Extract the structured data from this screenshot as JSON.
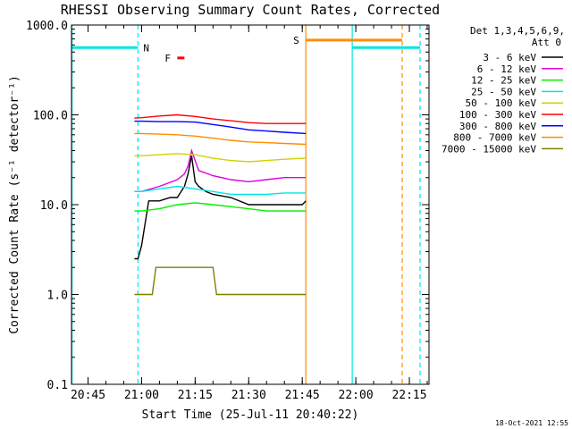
{
  "chart_data": {
    "type": "line",
    "title": "RHESSI Observing Summary Count Rates, Corrected",
    "xlabel": "Start Time (25-Jul-11 20:40:22)",
    "ylabel": "Corrected Count Rate (s⁻¹ detector⁻¹)",
    "y_scale": "log",
    "ylim": [
      0.1,
      1000
    ],
    "xlim": [
      "20:40:22",
      "22:20:30"
    ],
    "x_ticks": [
      "20:45",
      "21:00",
      "21:15",
      "21:30",
      "21:45",
      "22:00",
      "22:15"
    ],
    "y_ticks": [
      "0.1",
      "1.0",
      "10.0",
      "100.0",
      "1000.0"
    ],
    "grid": false,
    "footer": "18-Oct-2021 12:55",
    "legend_header": [
      "Det 1,3,4,5,6,9,",
      "Att 0"
    ],
    "legend_position": "right",
    "series": [
      {
        "name": "3 - 6 keV",
        "color": "#000000",
        "x": [
          "20:58",
          "20:59",
          "21:00",
          "21:02",
          "21:05",
          "21:08",
          "21:10",
          "21:12",
          "21:13",
          "21:14",
          "21:15",
          "21:16",
          "21:18",
          "21:20",
          "21:25",
          "21:30",
          "21:35",
          "21:40",
          "21:45",
          "21:46"
        ],
        "y": [
          2.5,
          2.5,
          3.5,
          11,
          11,
          12,
          12,
          16,
          22,
          35,
          18,
          16,
          14,
          13,
          12,
          10,
          10,
          10,
          10,
          11
        ]
      },
      {
        "name": "6 - 12 keV",
        "color": "#e000e0",
        "x": [
          "20:58",
          "21:00",
          "21:05",
          "21:10",
          "21:12",
          "21:13",
          "21:14",
          "21:16",
          "21:20",
          "21:25",
          "21:30",
          "21:35",
          "21:40",
          "21:46"
        ],
        "y": [
          14,
          14,
          16,
          19,
          22,
          27,
          40,
          24,
          21,
          19,
          18,
          19,
          20,
          20
        ]
      },
      {
        "name": "12 - 25 keV",
        "color": "#00ee00",
        "x": [
          "20:58",
          "21:00",
          "21:05",
          "21:10",
          "21:15",
          "21:20",
          "21:25",
          "21:30",
          "21:35",
          "21:40",
          "21:46"
        ],
        "y": [
          8.5,
          8.5,
          9,
          10,
          10.5,
          10,
          9.5,
          9,
          8.5,
          8.5,
          8.5
        ]
      },
      {
        "name": "25 - 50 keV",
        "color": "#00e5e5",
        "x": [
          "20:58",
          "21:00",
          "21:05",
          "21:10",
          "21:15",
          "21:20",
          "21:25",
          "21:30",
          "21:35",
          "21:40",
          "21:46"
        ],
        "y": [
          14,
          14,
          15,
          16,
          15,
          14,
          13,
          13,
          13,
          13.5,
          13.5
        ]
      },
      {
        "name": "50 - 100 keV",
        "color": "#d2d200",
        "x": [
          "20:58",
          "21:00",
          "21:05",
          "21:10",
          "21:15",
          "21:20",
          "21:25",
          "21:30",
          "21:35",
          "21:40",
          "21:46"
        ],
        "y": [
          35,
          35,
          36,
          37,
          36,
          33,
          31,
          30,
          31,
          32,
          33
        ]
      },
      {
        "name": "100 - 300 keV",
        "color": "#ff0000",
        "x": [
          "20:58",
          "21:00",
          "21:05",
          "21:10",
          "21:15",
          "21:20",
          "21:25",
          "21:30",
          "21:35",
          "21:40",
          "21:46"
        ],
        "y": [
          92,
          93,
          97,
          100,
          96,
          90,
          86,
          82,
          80,
          80,
          80
        ]
      },
      {
        "name": "300 - 800 keV",
        "color": "#0000ff",
        "x": [
          "20:58",
          "21:00",
          "21:05",
          "21:10",
          "21:15",
          "21:20",
          "21:25",
          "21:30",
          "21:35",
          "21:40",
          "21:46"
        ],
        "y": [
          85,
          85,
          84,
          84,
          83,
          78,
          73,
          68,
          66,
          64,
          62
        ]
      },
      {
        "name": "800 - 7000 keV",
        "color": "#ff8c00",
        "x": [
          "20:58",
          "21:00",
          "21:05",
          "21:10",
          "21:15",
          "21:20",
          "21:25",
          "21:30",
          "21:35",
          "21:40",
          "21:46"
        ],
        "y": [
          62,
          62,
          61,
          60,
          58,
          55,
          52,
          50,
          49,
          48,
          47
        ]
      },
      {
        "name": "7000 - 15000 keV",
        "color": "#808000",
        "x": [
          "20:58",
          "21:03",
          "21:04",
          "21:20",
          "21:21",
          "21:46"
        ],
        "y": [
          1.0,
          1.0,
          2.0,
          2.0,
          1.0,
          1.0
        ]
      }
    ],
    "annotations": {
      "night_bars": [
        {
          "label": "N",
          "start": "20:40:22",
          "end": "20:59:00",
          "value": 560,
          "color": "#00e5e5"
        },
        {
          "label": "",
          "start": "21:59:00",
          "end": "22:18:00",
          "value": 560,
          "color": "#00e5e5"
        }
      ],
      "saa_bar": {
        "label": "S",
        "start": "21:46:00",
        "end": "22:13:00",
        "value": 680,
        "color": "#ff8c00"
      },
      "flare_marker": {
        "label": "F",
        "start": "21:10:00",
        "end": "21:12:00",
        "value": 430,
        "color": "#ff0000"
      },
      "vertical_lines": [
        {
          "x": "20:40:30",
          "color": "#00e5e5",
          "style": "solid"
        },
        {
          "x": "20:59:00",
          "color": "#00e5e5",
          "style": "dashed"
        },
        {
          "x": "21:46:00",
          "color": "#ff8c00",
          "style": "solid"
        },
        {
          "x": "21:59:00",
          "color": "#00e5e5",
          "style": "solid"
        },
        {
          "x": "22:13:00",
          "color": "#ff8c00",
          "style": "dashed"
        },
        {
          "x": "22:18:00",
          "color": "#00e5e5",
          "style": "dashed"
        }
      ]
    }
  }
}
